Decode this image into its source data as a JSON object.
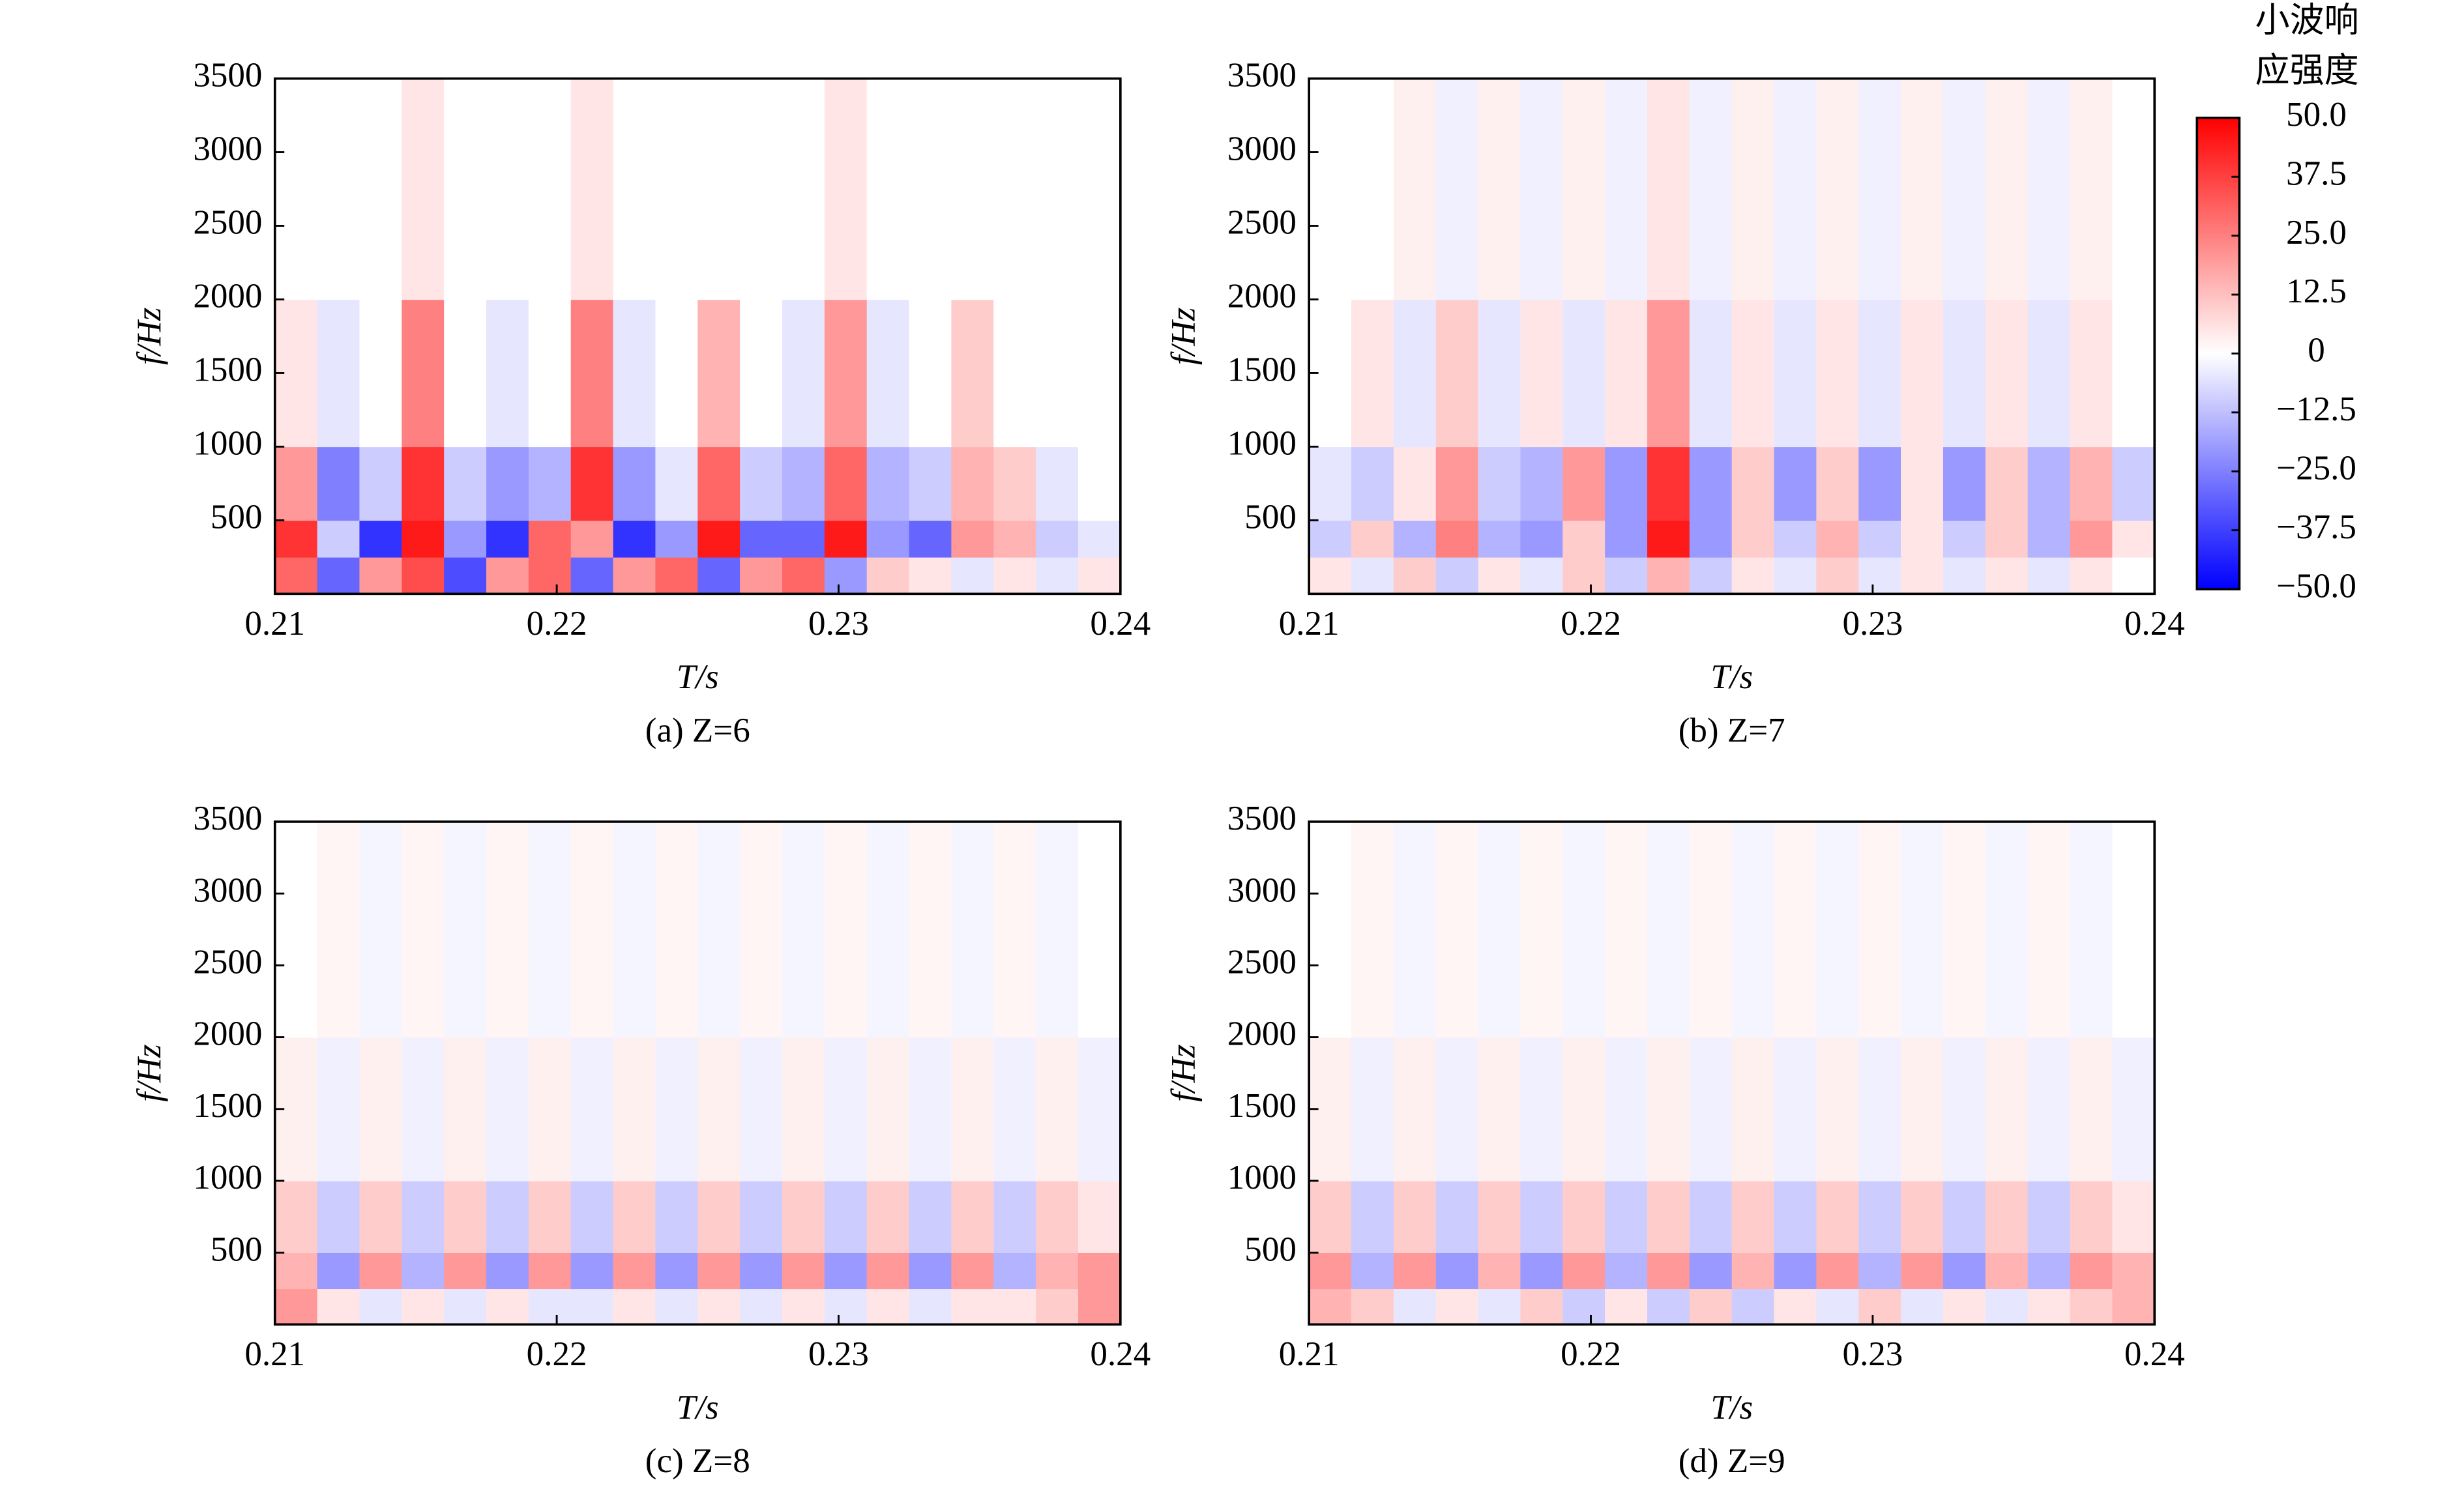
{
  "colorbar": {
    "label": [
      "小波响",
      "应强度"
    ],
    "zlim": [
      -50,
      50
    ],
    "colors": [
      "#0000ff",
      "#ffffff",
      "#ff0000"
    ],
    "zticks": [
      {
        "value": 50,
        "label": "50.0"
      },
      {
        "value": 37.5,
        "label": "37.5"
      },
      {
        "value": 25,
        "label": "25.0"
      },
      {
        "value": 12.5,
        "label": "12.5"
      },
      0,
      {
        "value": -12.5,
        "label": "−12.5"
      },
      {
        "value": -25,
        "label": "−25.0"
      },
      {
        "value": -37.5,
        "label": "−37.5"
      },
      {
        "value": -50,
        "label": "−50.0"
      }
    ]
  },
  "chart_data": [
    {
      "type": "heatmap",
      "caption": "(a) Z=6",
      "xlabel": "T/s",
      "ylabel": "f/Hz",
      "xlim": [
        0.21,
        0.24
      ],
      "ylim": [
        0,
        3500
      ],
      "xticks": [
        0.21,
        0.22,
        0.23,
        0.24
      ],
      "yticks": [
        500,
        1000,
        1500,
        2000,
        2500,
        3000,
        3500
      ],
      "xbins": [
        0.21,
        0.2115,
        0.213,
        0.2145,
        0.216,
        0.2175,
        0.219,
        0.2205,
        0.222,
        0.2235,
        0.225,
        0.2265,
        0.228,
        0.2295,
        0.231,
        0.2325,
        0.234,
        0.2355,
        0.237,
        0.2385,
        0.24
      ],
      "ybins": [
        0,
        250,
        500,
        1000,
        2000,
        3500
      ],
      "values": [
        [
          30,
          -30,
          20,
          35,
          -35,
          20,
          30,
          -30,
          20,
          30,
          -30,
          20,
          30,
          -20,
          10,
          5,
          -5,
          5,
          -5,
          5
        ],
        [
          40,
          -10,
          -40,
          45,
          -20,
          -40,
          30,
          20,
          -40,
          -20,
          45,
          -30,
          -30,
          45,
          -20,
          -30,
          20,
          15,
          -10,
          -5
        ],
        [
          20,
          -25,
          -10,
          40,
          -10,
          -20,
          -15,
          40,
          -20,
          -5,
          30,
          -10,
          -15,
          30,
          -15,
          -10,
          15,
          10,
          -5,
          0
        ],
        [
          5,
          -5,
          0,
          25,
          0,
          -5,
          0,
          25,
          -5,
          0,
          15,
          0,
          -5,
          20,
          -5,
          0,
          10,
          0,
          0,
          0
        ],
        [
          0,
          0,
          0,
          5,
          0,
          0,
          0,
          5,
          0,
          0,
          0,
          0,
          0,
          5,
          0,
          0,
          0,
          0,
          0,
          0
        ]
      ]
    },
    {
      "type": "heatmap",
      "caption": "(b) Z=7",
      "xlabel": "T/s",
      "ylabel": "f/Hz",
      "xlim": [
        0.21,
        0.24
      ],
      "ylim": [
        0,
        3500
      ],
      "xticks": [
        0.21,
        0.22,
        0.23,
        0.24
      ],
      "yticks": [
        500,
        1000,
        1500,
        2000,
        2500,
        3000,
        3500
      ],
      "xbins": [
        0.21,
        0.2115,
        0.213,
        0.2145,
        0.216,
        0.2175,
        0.219,
        0.2205,
        0.222,
        0.2235,
        0.225,
        0.2265,
        0.228,
        0.2295,
        0.231,
        0.2325,
        0.234,
        0.2355,
        0.237,
        0.2385,
        0.24
      ],
      "ybins": [
        0,
        250,
        500,
        1000,
        2000,
        3500
      ],
      "values": [
        [
          5,
          -5,
          10,
          -10,
          5,
          -5,
          10,
          -10,
          15,
          -10,
          5,
          -5,
          10,
          -5,
          5,
          -5,
          5,
          -5,
          5,
          0
        ],
        [
          -10,
          10,
          -15,
          25,
          -15,
          -20,
          10,
          -20,
          45,
          -20,
          10,
          -10,
          15,
          -10,
          5,
          -10,
          10,
          -15,
          20,
          5
        ],
        [
          -5,
          -10,
          5,
          20,
          -10,
          -15,
          20,
          -20,
          40,
          -20,
          10,
          -20,
          10,
          -20,
          5,
          -20,
          10,
          -15,
          15,
          -10
        ],
        [
          0,
          5,
          -5,
          10,
          -5,
          5,
          -5,
          5,
          20,
          -5,
          5,
          -5,
          5,
          -5,
          5,
          -5,
          5,
          -5,
          5,
          0
        ],
        [
          0,
          0,
          3,
          -3,
          3,
          -3,
          3,
          -3,
          5,
          -3,
          3,
          -3,
          3,
          -3,
          3,
          -3,
          3,
          -3,
          3,
          0
        ]
      ]
    },
    {
      "type": "heatmap",
      "caption": "(c) Z=8",
      "xlabel": "T/s",
      "ylabel": "f/Hz",
      "xlim": [
        0.21,
        0.24
      ],
      "ylim": [
        0,
        3500
      ],
      "xticks": [
        0.21,
        0.22,
        0.23,
        0.24
      ],
      "yticks": [
        500,
        1000,
        1500,
        2000,
        2500,
        3000,
        3500
      ],
      "xbins": [
        0.21,
        0.2115,
        0.213,
        0.2145,
        0.216,
        0.2175,
        0.219,
        0.2205,
        0.222,
        0.2235,
        0.225,
        0.2265,
        0.228,
        0.2295,
        0.231,
        0.2325,
        0.234,
        0.2355,
        0.237,
        0.2385,
        0.24
      ],
      "ybins": [
        0,
        250,
        500,
        1000,
        2000,
        3500
      ],
      "values": [
        [
          20,
          5,
          -5,
          5,
          -5,
          5,
          -5,
          -5,
          5,
          -5,
          5,
          -5,
          5,
          -5,
          5,
          -5,
          5,
          5,
          10,
          20
        ],
        [
          15,
          -20,
          20,
          -15,
          20,
          -20,
          20,
          -20,
          20,
          -20,
          20,
          -20,
          20,
          -20,
          20,
          -20,
          20,
          -15,
          15,
          20
        ],
        [
          10,
          -10,
          10,
          -10,
          10,
          -10,
          10,
          -10,
          10,
          -10,
          10,
          -10,
          10,
          -10,
          10,
          -10,
          10,
          -10,
          10,
          5
        ],
        [
          3,
          -3,
          3,
          -3,
          3,
          -3,
          3,
          -3,
          3,
          -3,
          3,
          -3,
          3,
          -3,
          3,
          -3,
          3,
          -3,
          3,
          -3
        ],
        [
          0,
          2,
          -2,
          2,
          -2,
          2,
          -2,
          2,
          -2,
          2,
          -2,
          2,
          -2,
          2,
          -2,
          2,
          -2,
          2,
          -2,
          0
        ]
      ]
    },
    {
      "type": "heatmap",
      "caption": "(d) Z=9",
      "xlabel": "T/s",
      "ylabel": "f/Hz",
      "xlim": [
        0.21,
        0.24
      ],
      "ylim": [
        0,
        3500
      ],
      "xticks": [
        0.21,
        0.22,
        0.23,
        0.24
      ],
      "yticks": [
        500,
        1000,
        1500,
        2000,
        2500,
        3000,
        3500
      ],
      "xbins": [
        0.21,
        0.2115,
        0.213,
        0.2145,
        0.216,
        0.2175,
        0.219,
        0.2205,
        0.222,
        0.2235,
        0.225,
        0.2265,
        0.228,
        0.2295,
        0.231,
        0.2325,
        0.234,
        0.2355,
        0.237,
        0.2385,
        0.24
      ],
      "ybins": [
        0,
        250,
        500,
        1000,
        2000,
        3500
      ],
      "values": [
        [
          15,
          10,
          -5,
          5,
          -5,
          10,
          -10,
          5,
          -10,
          10,
          -10,
          5,
          -5,
          10,
          -5,
          5,
          -5,
          5,
          10,
          15
        ],
        [
          20,
          -15,
          20,
          -20,
          15,
          -20,
          20,
          -15,
          20,
          -20,
          15,
          -20,
          20,
          -15,
          20,
          -20,
          15,
          -15,
          20,
          15
        ],
        [
          10,
          -10,
          10,
          -10,
          10,
          -10,
          10,
          -10,
          10,
          -10,
          10,
          -10,
          10,
          -10,
          10,
          -10,
          10,
          -10,
          10,
          5
        ],
        [
          3,
          -3,
          3,
          -3,
          3,
          -3,
          3,
          -3,
          3,
          -3,
          3,
          -3,
          3,
          -3,
          3,
          -3,
          3,
          -3,
          3,
          -3
        ],
        [
          0,
          2,
          -2,
          2,
          -2,
          2,
          -2,
          2,
          -2,
          2,
          -2,
          2,
          -2,
          2,
          -2,
          2,
          -2,
          2,
          -2,
          0
        ]
      ]
    }
  ]
}
